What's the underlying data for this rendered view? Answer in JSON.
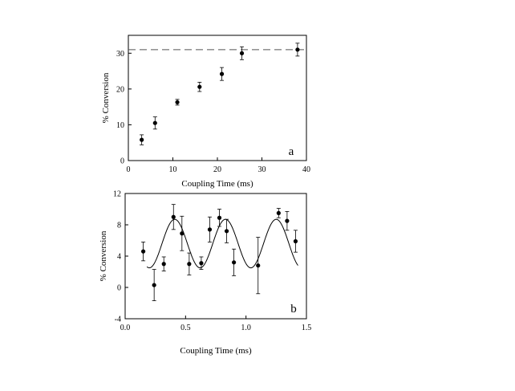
{
  "chart_data": [
    {
      "type": "scatter",
      "panel_label": "a",
      "xlabel": "Coupling Time (ms)",
      "ylabel": "% Conversion",
      "xlim": [
        0,
        40
      ],
      "ylim": [
        0,
        35
      ],
      "xticks": [
        "0",
        "10",
        "20",
        "30",
        "40"
      ],
      "yticks": [
        "0",
        "10",
        "20",
        "30"
      ],
      "grid": false,
      "series": [
        {
          "x": [
            3,
            6,
            11,
            16,
            21,
            25.5,
            38
          ],
          "y": [
            5.8,
            10.5,
            16.3,
            20.6,
            24.2,
            30.0,
            31.0
          ],
          "error": [
            1.4,
            1.7,
            0.8,
            1.3,
            1.8,
            1.8,
            1.8
          ]
        }
      ],
      "reference_lines": [
        {
          "axis": "y",
          "value": 31,
          "style": "dashed"
        }
      ]
    },
    {
      "type": "scatter",
      "panel_label": "b",
      "xlabel": "Coupling Time (ms)",
      "ylabel": "% Conversion",
      "xlim": [
        0,
        1.5
      ],
      "ylim": [
        -4,
        12
      ],
      "xticks": [
        "0.0",
        "0.5",
        "1.0",
        "1.5"
      ],
      "yticks": [
        "-4",
        "0",
        "4",
        "8",
        "12"
      ],
      "grid": false,
      "series": [
        {
          "x": [
            0.15,
            0.24,
            0.32,
            0.4,
            0.47,
            0.53,
            0.63,
            0.7,
            0.78,
            0.84,
            0.9,
            1.1,
            1.27,
            1.34,
            1.41
          ],
          "y": [
            4.6,
            0.3,
            3.0,
            9.0,
            6.9,
            3.0,
            3.1,
            7.4,
            8.9,
            7.2,
            3.2,
            2.8,
            9.5,
            8.5,
            5.9
          ],
          "error": [
            1.2,
            2.0,
            0.9,
            1.6,
            2.2,
            1.4,
            0.8,
            1.6,
            1.1,
            1.5,
            1.7,
            3.6,
            0.6,
            1.2,
            1.4
          ]
        }
      ],
      "fit_curve": {
        "x_range": [
          0.18,
          1.43
        ],
        "offset": 5.6,
        "amplitude": 3.1,
        "period": 0.42,
        "peak_x": 0.41
      }
    }
  ]
}
